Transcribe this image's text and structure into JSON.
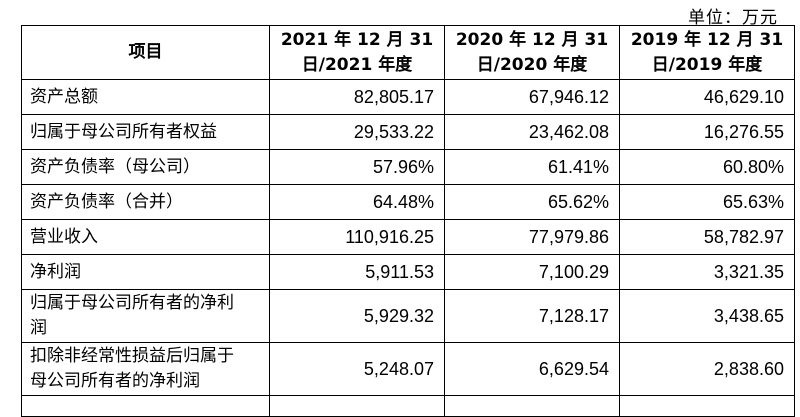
{
  "unit_label": "单位：万元",
  "headers": {
    "item": "项目",
    "col1_line1": "2021 年 12 月 31",
    "col1_line2": "日/2021 年度",
    "col2_line1": "2020 年 12 月 31",
    "col2_line2": "日/2020 年度",
    "col3_line1": "2019 年 12 月 31",
    "col3_line2": "日/2019 年度"
  },
  "rows": [
    {
      "label": "资产总额",
      "v2021": "82,805.17",
      "v2020": "67,946.12",
      "v2019": "46,629.10"
    },
    {
      "label": "归属于母公司所有者权益",
      "v2021": "29,533.22",
      "v2020": "23,462.08",
      "v2019": "16,276.55"
    },
    {
      "label": "资产负债率（母公司）",
      "v2021": "57.96%",
      "v2020": "61.41%",
      "v2019": "60.80%"
    },
    {
      "label": "资产负债率（合并）",
      "v2021": "64.48%",
      "v2020": "65.62%",
      "v2019": "65.63%"
    },
    {
      "label": "营业收入",
      "v2021": "110,916.25",
      "v2020": "77,979.86",
      "v2019": "58,782.97"
    },
    {
      "label": "净利润",
      "v2021": "5,911.53",
      "v2020": "7,100.29",
      "v2019": "3,321.35"
    },
    {
      "label_line1": "归属于母公司所有者的净利",
      "label_line2": "润",
      "v2021": "5,929.32",
      "v2020": "7,128.17",
      "v2019": "3,438.65"
    },
    {
      "label_line1": "扣除非经常性损益后归属于",
      "label_line2": "母公司所有者的净利润",
      "v2021": "5,248.07",
      "v2020": "6,629.54",
      "v2019": "2,838.60"
    }
  ]
}
